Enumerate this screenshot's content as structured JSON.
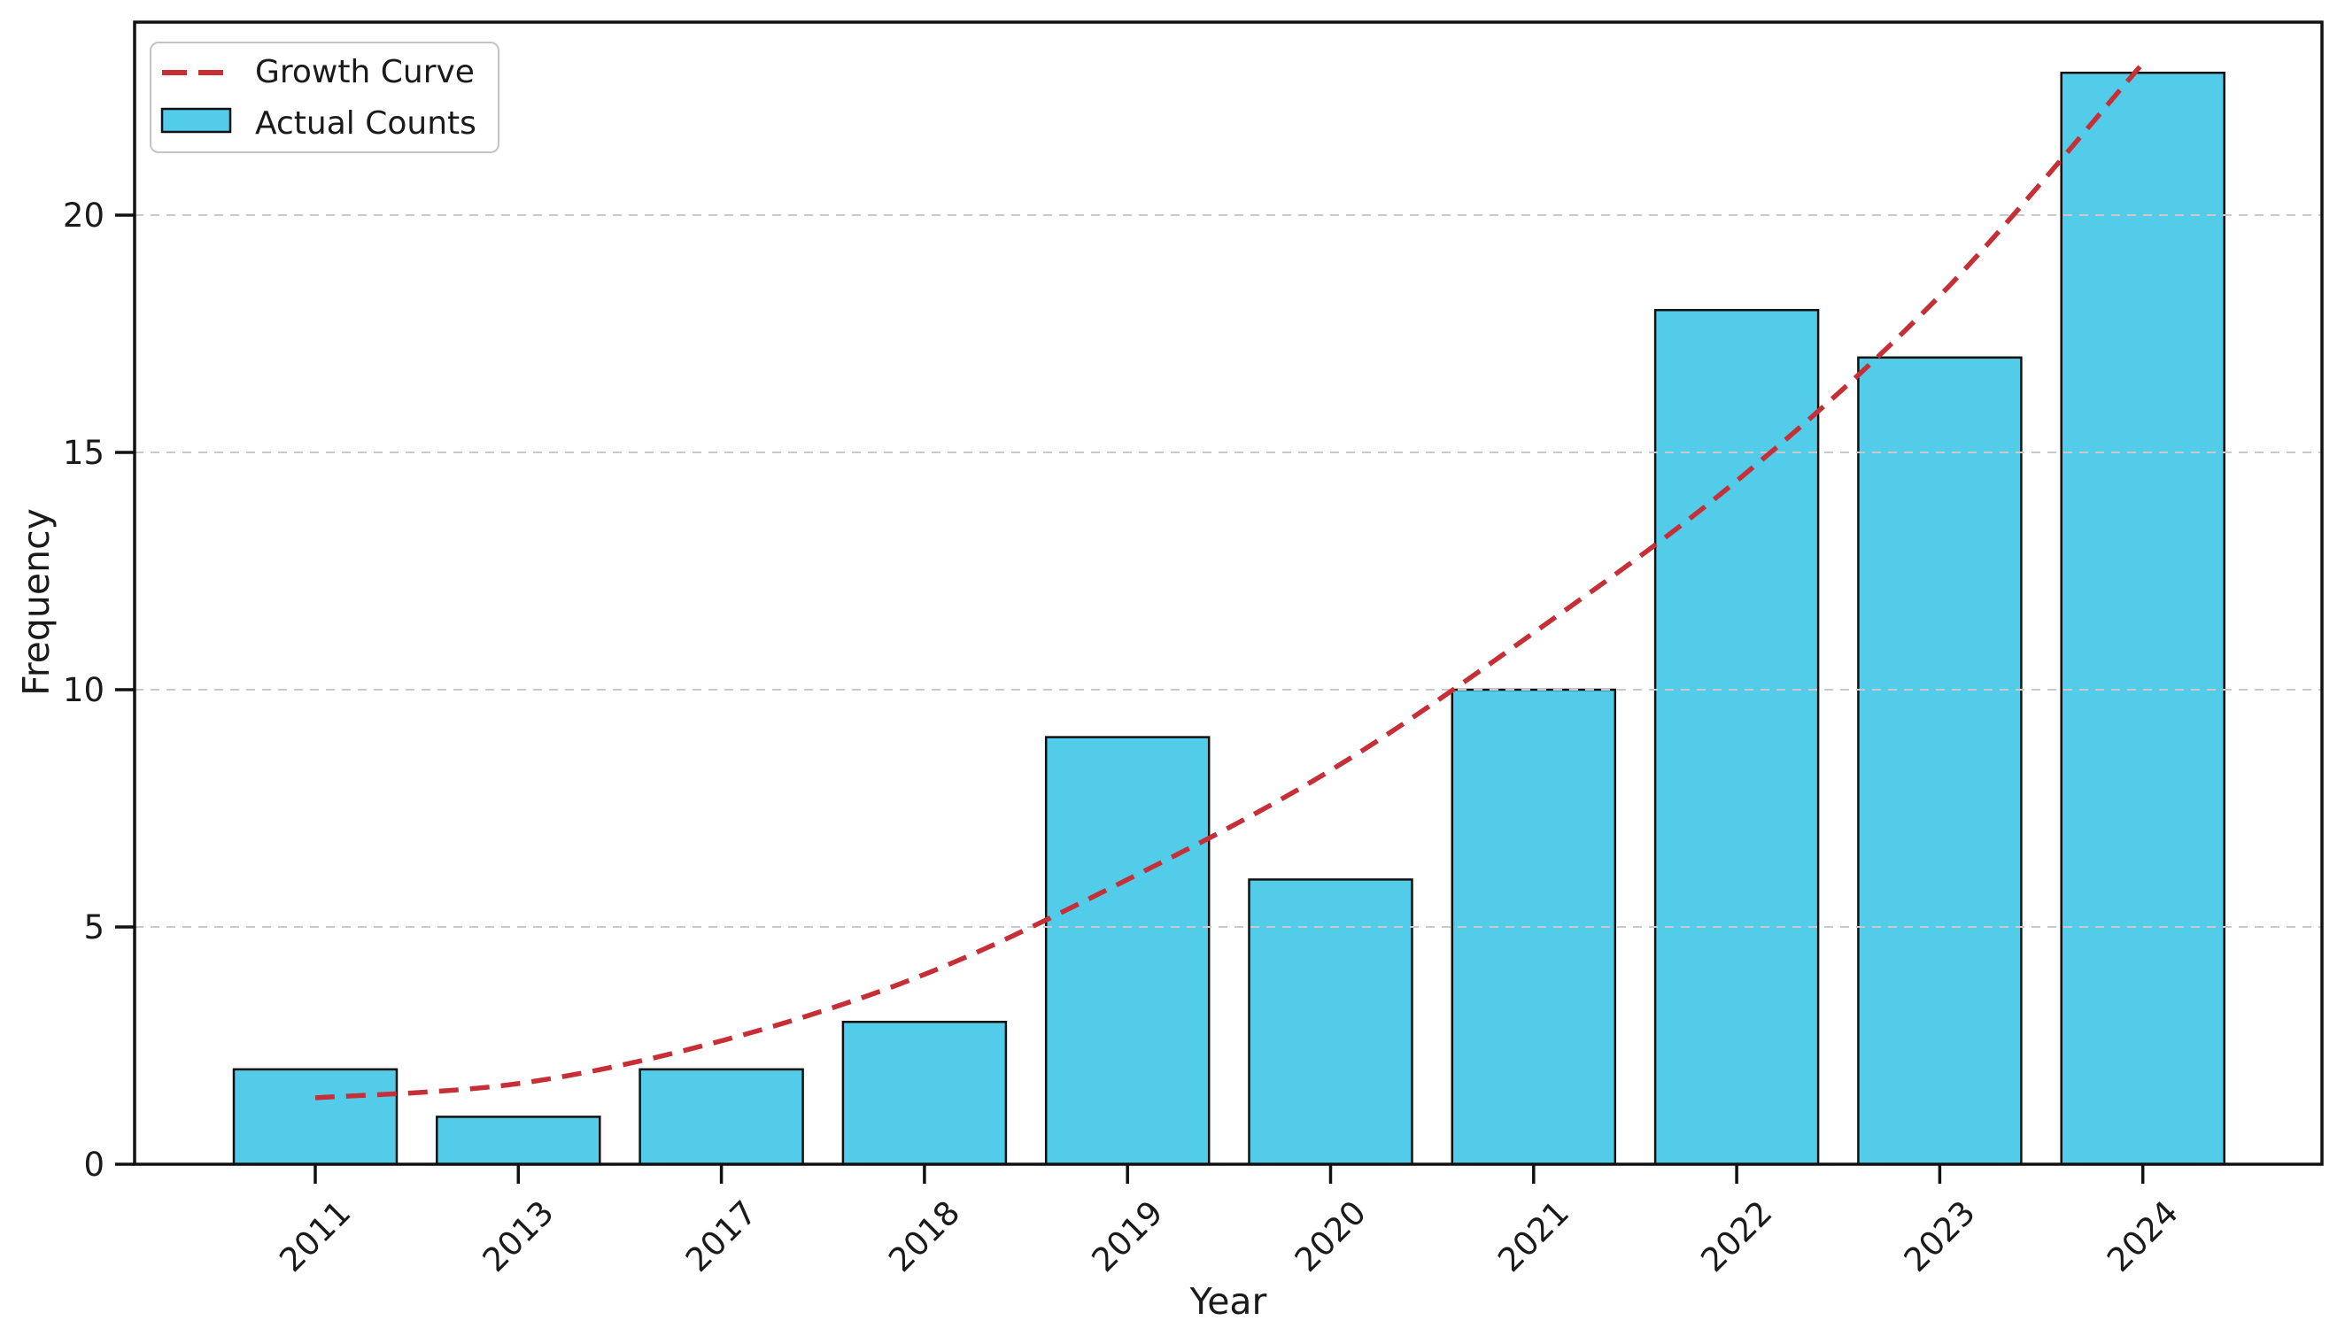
{
  "chart_data": {
    "type": "bar",
    "title": "",
    "xlabel": "Year",
    "ylabel": "Frequency",
    "categories": [
      "2011",
      "2013",
      "2017",
      "2018",
      "2019",
      "2020",
      "2021",
      "2022",
      "2023",
      "2024"
    ],
    "series": [
      {
        "name": "Actual Counts",
        "type": "bar",
        "values": [
          2,
          1,
          2,
          3,
          9,
          6,
          10,
          18,
          17,
          23
        ]
      },
      {
        "name": "Growth Curve",
        "type": "line",
        "style": "dashed",
        "values": [
          1.4,
          1.7,
          2.6,
          4.0,
          6.0,
          8.3,
          11.2,
          14.4,
          18.3,
          23.2
        ]
      }
    ],
    "yticks": [
      0,
      5,
      10,
      15,
      20
    ],
    "ylim": [
      0,
      24.1
    ],
    "grid": "horizontal-dashed",
    "legend_position": "upper-left",
    "legend": [
      "Growth Curve",
      "Actual Counts"
    ],
    "colors": {
      "bar_fill": "#52CCE8",
      "bar_edge": "#111111",
      "curve": "#C62F36",
      "grid": "#c9c9c9",
      "spine": "#111111",
      "text": "#1a1a1a",
      "legend_border": "#c4c4c4"
    }
  }
}
